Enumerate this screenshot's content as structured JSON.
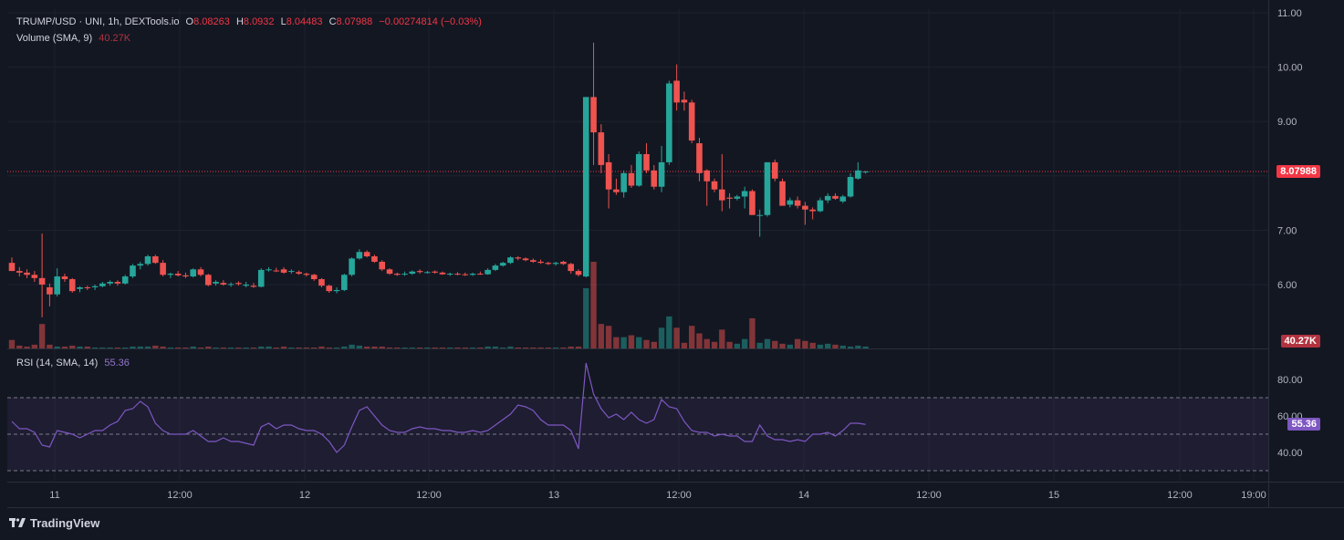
{
  "header": {
    "symbol": "TRUMP/USD · UNI, 1h, DEXTools.io",
    "open_label": "O",
    "open": "8.08263",
    "high_label": "H",
    "high": "8.0932",
    "low_label": "L",
    "low": "8.04483",
    "close_label": "C",
    "close": "8.07988",
    "change": "−0.00274814 (−0.03%)"
  },
  "volume_legend": {
    "label": "Volume (SMA, 9)",
    "value": "40.27K"
  },
  "rsi_legend": {
    "label": "RSI (14, SMA, 14)",
    "value": "55.36"
  },
  "price_axis": {
    "ticks": [
      "11.00",
      "10.00",
      "9.00",
      "7.00",
      "6.00"
    ],
    "current_price": "8.07988",
    "volume_tag": "40.27K"
  },
  "rsi_axis": {
    "ticks": [
      "80.00",
      "60.00",
      "40.00"
    ],
    "current_rsi": "55.36"
  },
  "time_axis": {
    "ticks": [
      "11",
      "12:00",
      "12",
      "12:00",
      "13",
      "12:00",
      "14",
      "12:00",
      "15",
      "12:00",
      "19:00"
    ]
  },
  "brand": {
    "name": "TradingView",
    "icon": "tradingview-logo-icon"
  },
  "colors": {
    "up": "#26a69a",
    "down": "#ef5350",
    "bg": "#131722",
    "grid": "#1e222d",
    "rsi": "#7e57c2",
    "price_tag": "#f23645"
  },
  "chart_data": {
    "type": "candlestick",
    "price_range": [
      5.2,
      11.1
    ],
    "rsi_range": [
      27,
      95
    ],
    "candles": [
      [
        6.4,
        6.5,
        6.25,
        6.25
      ],
      [
        6.25,
        6.32,
        6.15,
        6.22
      ],
      [
        6.22,
        6.28,
        6.12,
        6.18
      ],
      [
        6.18,
        6.25,
        6.05,
        6.12
      ],
      [
        6.12,
        6.94,
        5.4,
        6.0
      ],
      [
        5.95,
        6.02,
        5.6,
        5.82
      ],
      [
        5.82,
        6.3,
        5.78,
        6.15
      ],
      [
        6.15,
        6.2,
        6.05,
        6.1
      ],
      [
        6.1,
        6.12,
        5.85,
        5.88
      ],
      [
        5.92,
        5.97,
        5.86,
        5.95
      ],
      [
        5.95,
        5.98,
        5.9,
        5.94
      ],
      [
        5.95,
        6.0,
        5.9,
        5.97
      ],
      [
        5.97,
        6.05,
        5.95,
        6.02
      ],
      [
        6.02,
        6.08,
        5.98,
        6.05
      ],
      [
        6.05,
        6.08,
        5.98,
        6.02
      ],
      [
        6.02,
        6.18,
        6.0,
        6.15
      ],
      [
        6.15,
        6.38,
        6.12,
        6.35
      ],
      [
        6.35,
        6.42,
        6.28,
        6.38
      ],
      [
        6.38,
        6.55,
        6.35,
        6.52
      ],
      [
        6.52,
        6.55,
        6.38,
        6.4
      ],
      [
        6.4,
        6.45,
        6.15,
        6.18
      ],
      [
        6.18,
        6.22,
        6.12,
        6.2
      ],
      [
        6.2,
        6.25,
        6.15,
        6.17
      ],
      [
        6.17,
        6.22,
        6.12,
        6.15
      ],
      [
        6.15,
        6.3,
        6.13,
        6.28
      ],
      [
        6.28,
        6.32,
        6.15,
        6.18
      ],
      [
        6.18,
        6.2,
        5.97,
        5.99
      ],
      [
        6.02,
        6.08,
        5.98,
        6.05
      ],
      [
        6.03,
        6.08,
        5.98,
        6.0
      ],
      [
        6.0,
        6.04,
        5.96,
        6.01
      ],
      [
        6.03,
        6.06,
        5.98,
        6.01
      ],
      [
        5.98,
        6.05,
        5.95,
        6.0
      ],
      [
        5.98,
        6.03,
        5.94,
        5.96
      ],
      [
        5.96,
        6.3,
        5.95,
        6.27
      ],
      [
        6.27,
        6.32,
        6.24,
        6.28
      ],
      [
        6.26,
        6.31,
        6.23,
        6.25
      ],
      [
        6.28,
        6.32,
        6.2,
        6.22
      ],
      [
        6.24,
        6.28,
        6.2,
        6.25
      ],
      [
        6.23,
        6.26,
        6.18,
        6.2
      ],
      [
        6.2,
        6.22,
        6.15,
        6.18
      ],
      [
        6.18,
        6.2,
        6.07,
        6.1
      ],
      [
        6.1,
        6.12,
        5.95,
        5.98
      ],
      [
        5.98,
        6.0,
        5.85,
        5.88
      ],
      [
        5.88,
        5.95,
        5.84,
        5.9
      ],
      [
        5.9,
        6.2,
        5.88,
        6.18
      ],
      [
        6.18,
        6.5,
        6.15,
        6.48
      ],
      [
        6.48,
        6.65,
        6.46,
        6.6
      ],
      [
        6.6,
        6.63,
        6.5,
        6.52
      ],
      [
        6.52,
        6.55,
        6.4,
        6.42
      ],
      [
        6.42,
        6.45,
        6.25,
        6.28
      ],
      [
        6.28,
        6.3,
        6.18,
        6.2
      ],
      [
        6.2,
        6.22,
        6.16,
        6.18
      ],
      [
        6.19,
        6.24,
        6.16,
        6.2
      ],
      [
        6.2,
        6.26,
        6.18,
        6.24
      ],
      [
        6.25,
        6.28,
        6.2,
        6.23
      ],
      [
        6.23,
        6.25,
        6.2,
        6.23
      ],
      [
        6.24,
        6.26,
        6.2,
        6.22
      ],
      [
        6.22,
        6.24,
        6.18,
        6.19
      ],
      [
        6.19,
        6.22,
        6.16,
        6.2
      ],
      [
        6.2,
        6.23,
        6.17,
        6.19
      ],
      [
        6.19,
        6.22,
        6.16,
        6.18
      ],
      [
        6.18,
        6.22,
        6.16,
        6.2
      ],
      [
        6.2,
        6.24,
        6.18,
        6.19
      ],
      [
        6.19,
        6.3,
        6.18,
        6.27
      ],
      [
        6.27,
        6.38,
        6.25,
        6.35
      ],
      [
        6.35,
        6.42,
        6.33,
        6.4
      ],
      [
        6.4,
        6.52,
        6.38,
        6.5
      ],
      [
        6.5,
        6.52,
        6.45,
        6.48
      ],
      [
        6.48,
        6.5,
        6.43,
        6.45
      ],
      [
        6.45,
        6.48,
        6.4,
        6.42
      ],
      [
        6.42,
        6.46,
        6.38,
        6.4
      ],
      [
        6.4,
        6.42,
        6.36,
        6.38
      ],
      [
        6.38,
        6.42,
        6.35,
        6.4
      ],
      [
        6.42,
        6.44,
        6.36,
        6.38
      ],
      [
        6.38,
        6.4,
        6.2,
        6.25
      ],
      [
        6.25,
        6.28,
        6.15,
        6.18
      ],
      [
        6.15,
        9.45,
        6.13,
        9.45
      ],
      [
        9.45,
        10.45,
        8.2,
        8.8
      ],
      [
        8.8,
        8.95,
        8.05,
        8.2
      ],
      [
        8.25,
        8.4,
        7.4,
        7.75
      ],
      [
        7.75,
        7.95,
        7.65,
        7.7
      ],
      [
        7.7,
        8.1,
        7.6,
        8.05
      ],
      [
        8.05,
        8.2,
        7.78,
        7.82
      ],
      [
        7.82,
        8.45,
        7.8,
        8.4
      ],
      [
        8.4,
        8.6,
        8.05,
        8.1
      ],
      [
        8.1,
        8.2,
        7.75,
        7.8
      ],
      [
        7.8,
        8.55,
        7.7,
        8.25
      ],
      [
        8.25,
        9.75,
        8.2,
        9.7
      ],
      [
        9.75,
        10.05,
        9.2,
        9.35
      ],
      [
        9.4,
        9.55,
        9.2,
        9.35
      ],
      [
        9.35,
        9.4,
        8.6,
        8.65
      ],
      [
        8.6,
        8.7,
        7.9,
        8.05
      ],
      [
        8.1,
        8.12,
        7.45,
        7.9
      ],
      [
        7.9,
        7.95,
        7.7,
        7.75
      ],
      [
        7.75,
        8.4,
        7.35,
        7.55
      ],
      [
        7.6,
        7.68,
        7.4,
        7.58
      ],
      [
        7.58,
        7.65,
        7.55,
        7.62
      ],
      [
        7.62,
        7.8,
        7.4,
        7.72
      ],
      [
        7.72,
        7.75,
        7.3,
        7.28
      ],
      [
        7.28,
        7.38,
        6.88,
        7.28
      ],
      [
        7.28,
        8.25,
        7.25,
        8.25
      ],
      [
        8.25,
        8.3,
        7.9,
        7.95
      ],
      [
        7.9,
        7.95,
        7.45,
        7.45
      ],
      [
        7.47,
        7.6,
        7.42,
        7.55
      ],
      [
        7.55,
        7.62,
        7.4,
        7.45
      ],
      [
        7.45,
        7.52,
        7.1,
        7.38
      ],
      [
        7.38,
        7.42,
        7.2,
        7.35
      ],
      [
        7.35,
        7.6,
        7.33,
        7.55
      ],
      [
        7.55,
        7.68,
        7.5,
        7.63
      ],
      [
        7.63,
        7.68,
        7.56,
        7.58
      ],
      [
        7.53,
        7.65,
        7.5,
        7.62
      ],
      [
        7.62,
        8.05,
        7.6,
        7.98
      ],
      [
        7.95,
        8.25,
        7.93,
        8.1
      ],
      [
        8.08,
        8.09,
        8.04,
        8.08
      ]
    ],
    "volume": [
      9,
      3,
      2,
      4,
      26,
      4,
      2,
      2,
      3,
      2,
      2,
      1,
      1,
      1,
      1,
      1,
      2,
      2,
      2,
      3,
      2,
      1,
      1,
      1,
      2,
      1,
      2,
      1,
      1,
      1,
      1,
      1,
      1,
      2,
      2,
      1,
      2,
      1,
      1,
      1,
      1,
      2,
      1,
      1,
      2,
      4,
      3,
      2,
      2,
      2,
      1,
      1,
      1,
      1,
      1,
      1,
      1,
      1,
      1,
      1,
      1,
      1,
      1,
      2,
      2,
      1,
      2,
      1,
      1,
      1,
      1,
      1,
      1,
      1,
      2,
      2,
      64,
      92,
      26,
      24,
      12,
      12,
      14,
      12,
      9,
      7,
      22,
      34,
      22,
      6,
      24,
      16,
      10,
      7,
      20,
      7,
      5,
      10,
      32,
      6,
      10,
      8,
      5,
      4,
      10,
      8,
      6,
      4,
      5,
      4,
      3,
      2,
      3,
      2
    ],
    "rsi": [
      57,
      53,
      53,
      51,
      44,
      43,
      52,
      51,
      50,
      48,
      50,
      52,
      52,
      55,
      57,
      63,
      64,
      68,
      65,
      56,
      52,
      50,
      50,
      50,
      52,
      49,
      46,
      46,
      48,
      46,
      46,
      45,
      44,
      54,
      56,
      53,
      55,
      55,
      53,
      52,
      52,
      50,
      46,
      40,
      44,
      54,
      63,
      65,
      60,
      55,
      52,
      51,
      51,
      53,
      54,
      53,
      53,
      52,
      52,
      51,
      51,
      52,
      51,
      52,
      55,
      58,
      61,
      66,
      65,
      63,
      58,
      55,
      55,
      55,
      52,
      42,
      89,
      72,
      64,
      59,
      61,
      58,
      62,
      58,
      56,
      58,
      69,
      65,
      64,
      57,
      52,
      51,
      51,
      49,
      50,
      49,
      49,
      46,
      46,
      55,
      49,
      47,
      47,
      46,
      47,
      46,
      50,
      50,
      51,
      49,
      52,
      56,
      56,
      55.36
    ],
    "rsi_sma": 60,
    "current_price": 8.07988,
    "horizontal_price_line": 8.07988
  }
}
